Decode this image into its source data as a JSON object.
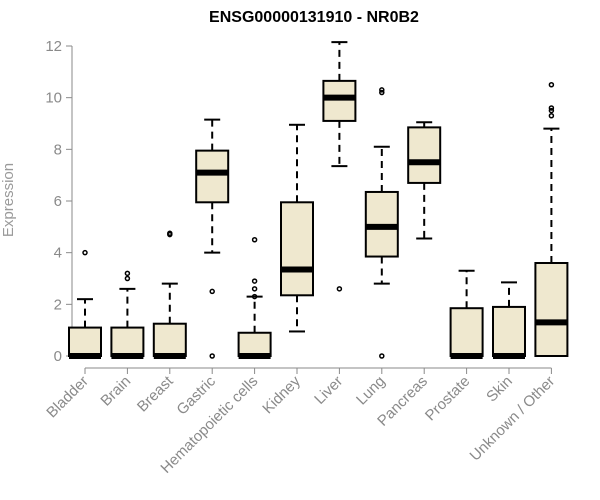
{
  "chart_data": {
    "type": "boxplot",
    "title": "ENSG00000131910 - NR0B2",
    "xlabel": "",
    "ylabel": "Expression",
    "ylim": [
      0,
      12
    ],
    "yticks": [
      0,
      2,
      4,
      6,
      8,
      10,
      12
    ],
    "grid": false,
    "box_fill": "#efe8cf",
    "categories": [
      "Bladder",
      "Brain",
      "Breast",
      "Gastric",
      "Hematopoietic cells",
      "Kidney",
      "Liver",
      "Lung",
      "Pancreas",
      "Prostate",
      "Skin",
      "Unknown / Other"
    ],
    "boxes": [
      {
        "low": 0,
        "q1": 0,
        "median": 0,
        "q3": 1.1,
        "high": 2.2,
        "outliers": [
          4.0
        ]
      },
      {
        "low": 0,
        "q1": 0,
        "median": 0,
        "q3": 1.1,
        "high": 2.6,
        "outliers": [
          3.0,
          3.2
        ]
      },
      {
        "low": 0,
        "q1": 0,
        "median": 0,
        "q3": 1.25,
        "high": 2.8,
        "outliers": [
          4.7,
          4.75
        ]
      },
      {
        "low": 4.0,
        "q1": 5.95,
        "median": 7.1,
        "q3": 7.95,
        "high": 9.15,
        "outliers": [
          2.5,
          0
        ]
      },
      {
        "low": 0,
        "q1": 0,
        "median": 0,
        "q3": 0.9,
        "high": 2.3,
        "outliers": [
          2.3,
          2.6,
          2.9,
          4.5
        ]
      },
      {
        "low": 0.95,
        "q1": 2.35,
        "median": 3.35,
        "q3": 5.95,
        "high": 8.95,
        "outliers": []
      },
      {
        "low": 7.35,
        "q1": 9.1,
        "median": 10.0,
        "q3": 10.65,
        "high": 12.15,
        "outliers": [
          2.6
        ]
      },
      {
        "low": 2.8,
        "q1": 3.85,
        "median": 5.0,
        "q3": 6.35,
        "high": 8.1,
        "outliers": [
          10.2,
          10.3,
          0
        ]
      },
      {
        "low": 4.55,
        "q1": 6.7,
        "median": 7.5,
        "q3": 8.85,
        "high": 9.05,
        "outliers": []
      },
      {
        "low": 0,
        "q1": 0,
        "median": 0,
        "q3": 1.85,
        "high": 3.3,
        "outliers": []
      },
      {
        "low": 0,
        "q1": 0,
        "median": 0,
        "q3": 1.9,
        "high": 2.85,
        "outliers": []
      },
      {
        "low": 0,
        "q1": 0,
        "median": 1.3,
        "q3": 3.6,
        "high": 8.8,
        "outliers": [
          9.3,
          9.5,
          9.6,
          10.5
        ]
      }
    ]
  }
}
